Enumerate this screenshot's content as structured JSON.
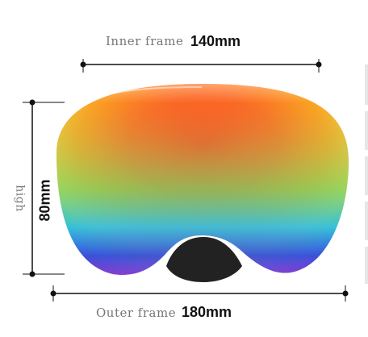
{
  "dimensions": {
    "inner_frame": {
      "label": "Inner frame",
      "value": "140mm"
    },
    "outer_frame": {
      "label": "Outer frame",
      "value": "180mm"
    },
    "height": {
      "label": "high",
      "value": "80mm"
    }
  },
  "colors": {
    "lens_center": "#ff3b1a",
    "lens_mid": "#ff9a1c",
    "lens_edge_top": "#f4d64a",
    "lens_bottom_rainbow": [
      "#4fd36b",
      "#29b7e8",
      "#3c4fd8",
      "#8d3fd0"
    ],
    "nose_cutout": "#222222",
    "dimension_line": "#111111"
  }
}
